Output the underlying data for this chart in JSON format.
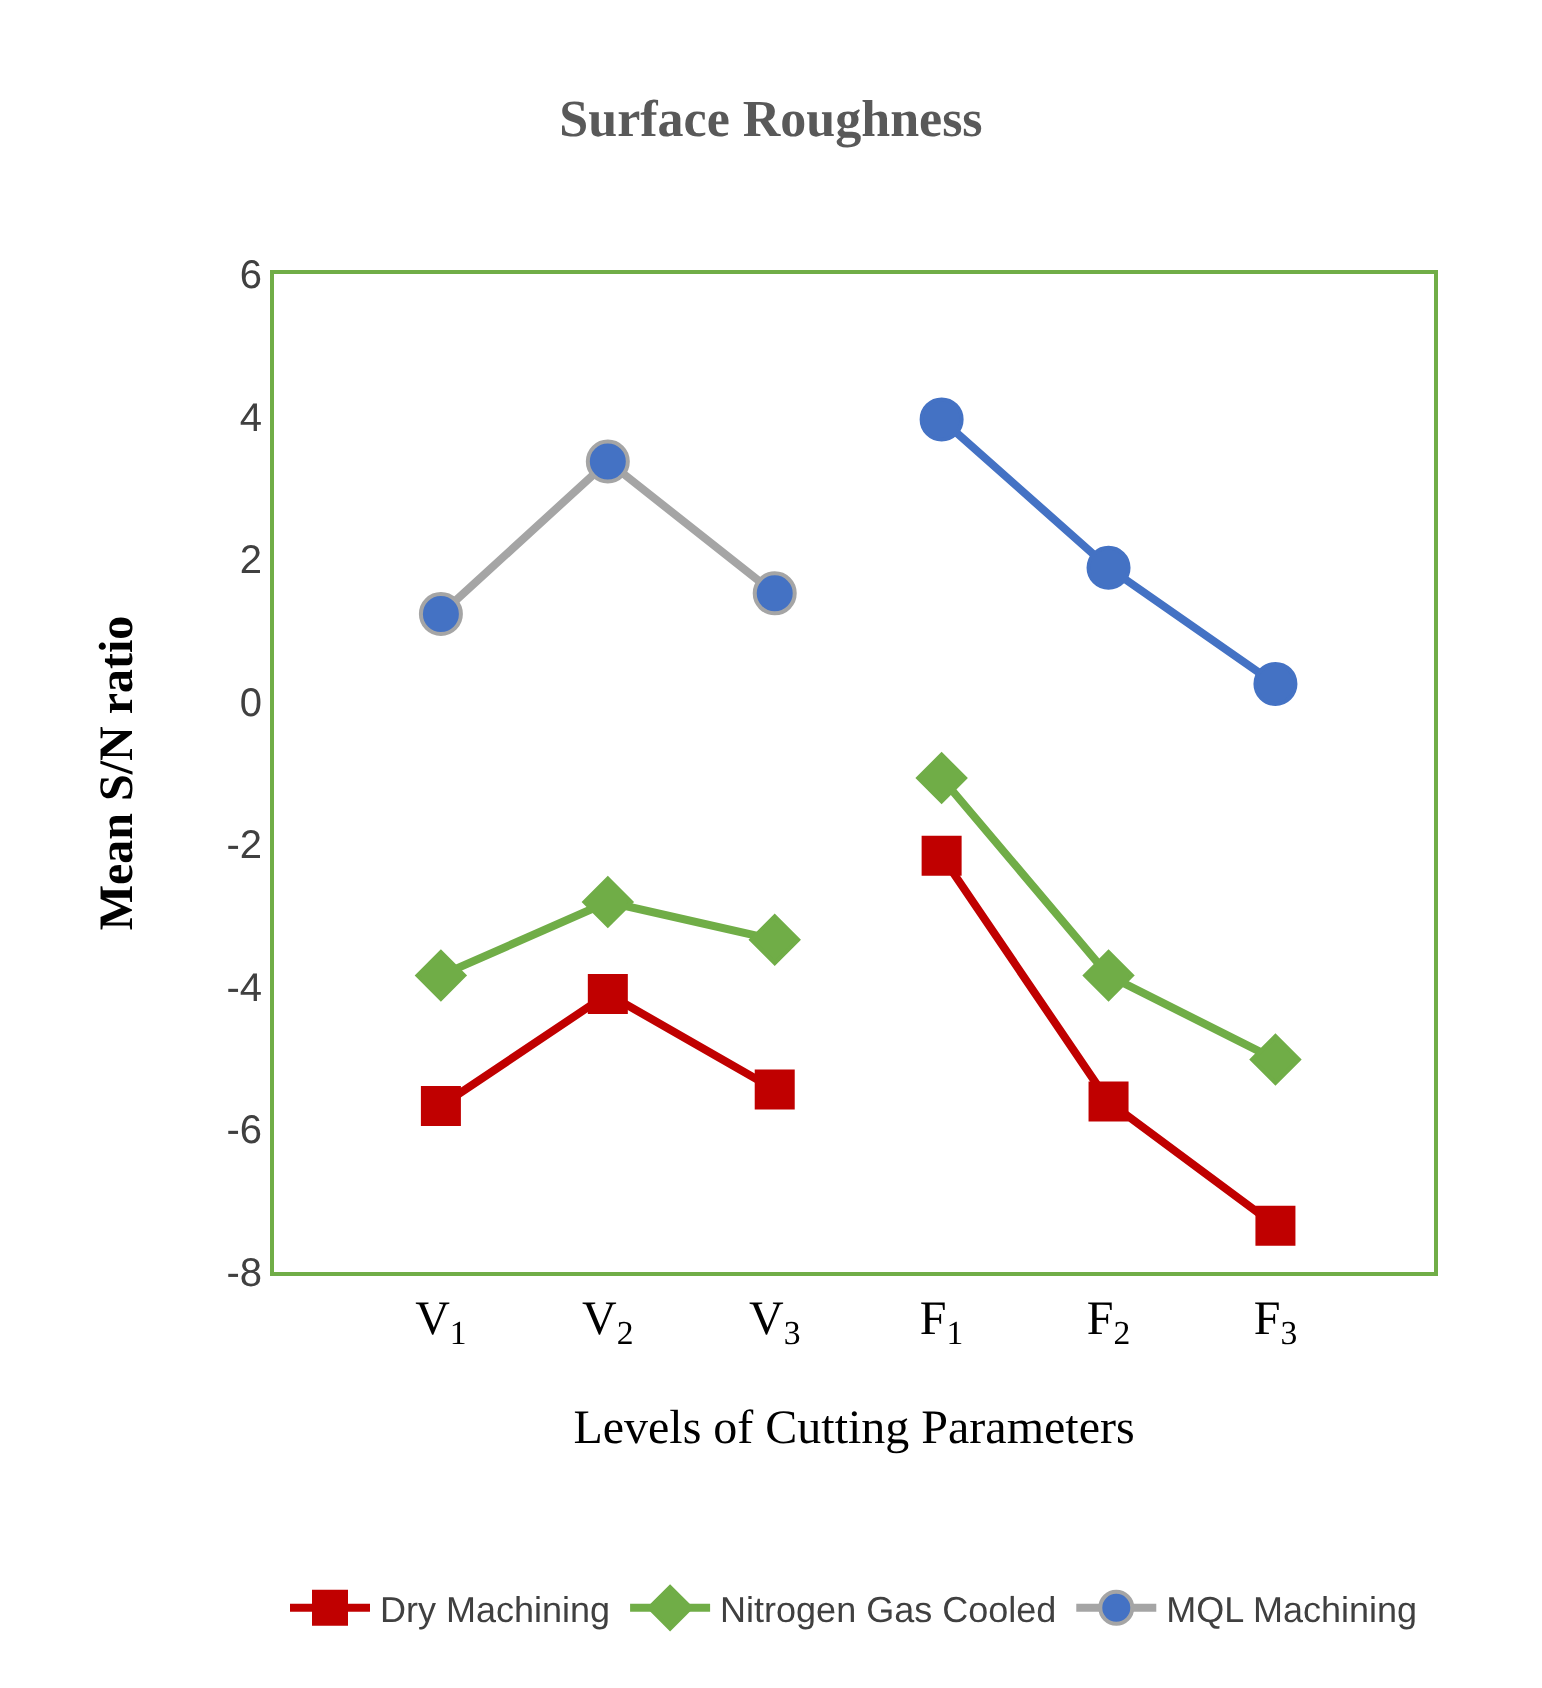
{
  "chart_data": {
    "type": "line",
    "title": "Surface Roughness",
    "xlabel": "Levels of Cutting Parameters",
    "ylabel": "Mean S/N ratio",
    "categories": [
      "V$_{1}$",
      "V$_{2}$",
      "V$_{3}$",
      "F$_{1}$",
      "F$_{2}$",
      "F$_{3}$"
    ],
    "ylim": [
      -8,
      6
    ],
    "yticks": [
      -8,
      -6,
      -4,
      -2,
      0,
      2,
      4,
      6
    ],
    "legend": "bottom",
    "series": [
      {
        "name": "Dry Machining",
        "color": "#c00000",
        "marker": "square",
        "values": [
          -5.67,
          -4.1,
          -5.44,
          null,
          null,
          null
        ]
      },
      {
        "color": "#c00000",
        "marker": "square",
        "values": [
          null,
          null,
          null,
          -2.16,
          -5.61,
          -7.35
        ]
      },
      {
        "name": "Nitrogen Gas Cooled",
        "color": "#70ad47",
        "marker": "diamond",
        "values": [
          -3.84,
          -2.81,
          -3.34,
          null,
          null,
          null
        ]
      },
      {
        "color": "#70ad47",
        "marker": "diamond",
        "values": [
          null,
          null,
          null,
          -1.07,
          -3.84,
          -5.02
        ]
      },
      {
        "name": "MQL Machining",
        "color": "#a5a5a5",
        "marker": "circle",
        "colors": [
          "#4472c4",
          "#4472c4",
          "#4472c4",
          null,
          null,
          null
        ],
        "values": [
          1.23,
          3.37,
          1.52,
          null,
          null,
          null
        ]
      },
      {
        "color": "#4472c4",
        "marker": "circle",
        "colors": [
          null,
          null,
          null,
          "#4472c4",
          "#4472c4",
          "#4472c4"
        ],
        "values": [
          null,
          null,
          null,
          3.96,
          1.88,
          0.25
        ]
      }
    ]
  }
}
